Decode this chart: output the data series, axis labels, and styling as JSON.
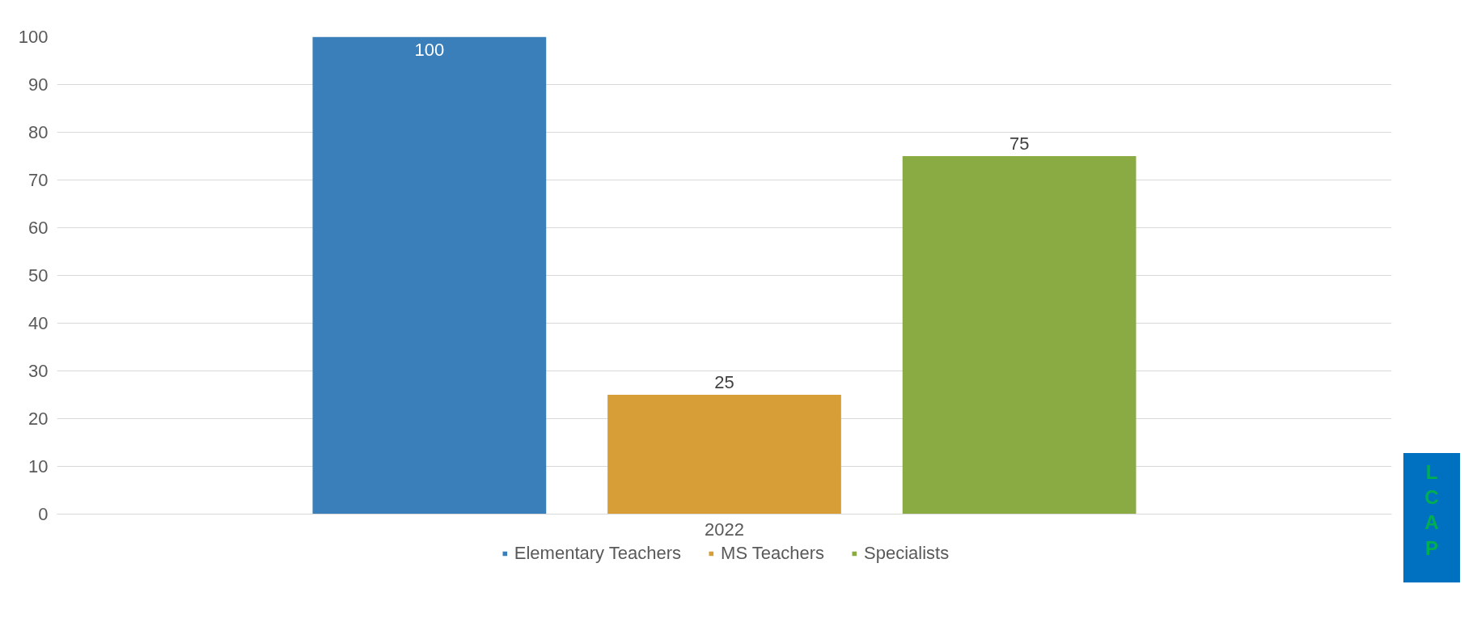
{
  "chart_data": {
    "type": "bar",
    "categories": [
      "2022"
    ],
    "series": [
      {
        "name": "Elementary Teachers",
        "color": "#3a7fba",
        "values": [
          100
        ]
      },
      {
        "name": "MS Teachers",
        "color": "#d79e38",
        "values": [
          25
        ]
      },
      {
        "name": "Specialists",
        "color": "#8aaa43",
        "values": [
          75
        ]
      }
    ],
    "ylim": [
      0,
      100
    ],
    "yticks": [
      0,
      10,
      20,
      30,
      40,
      50,
      60,
      70,
      80,
      90,
      100
    ],
    "grid": "y",
    "legend": "bottom",
    "data_labels": true,
    "annotations": [
      "LCAP"
    ]
  }
}
